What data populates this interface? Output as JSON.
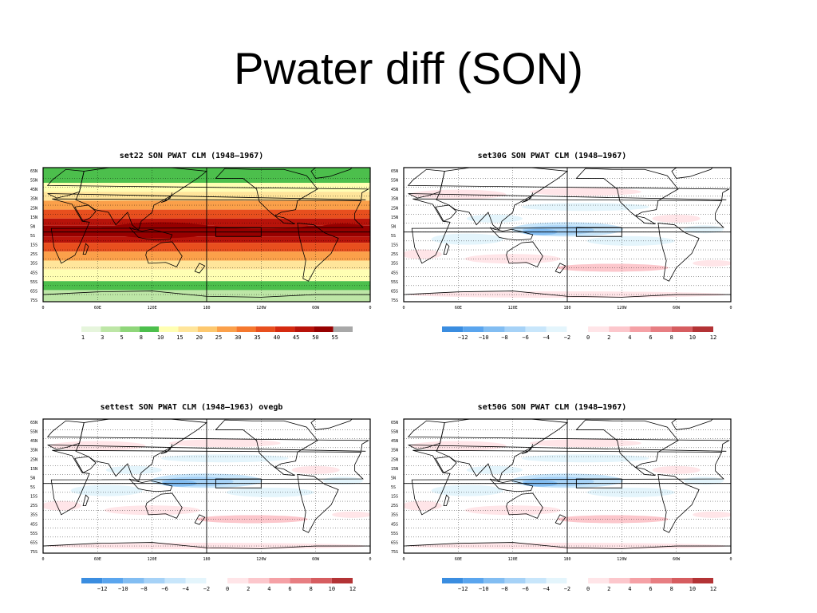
{
  "slide": {
    "title": "Pwater diff (SON)"
  },
  "lat_labels": [
    "65N",
    "55N",
    "45N",
    "35N",
    "25N",
    "15N",
    "5N",
    "5S",
    "15S",
    "25S",
    "35S",
    "45S",
    "55S",
    "65S",
    "75S"
  ],
  "lon_labels": [
    "0",
    "60E",
    "120E",
    "180",
    "120W",
    "60W",
    "0"
  ],
  "panels": [
    {
      "id": "p1",
      "title": "set22 SON PWAT CLM (1948–1967)",
      "type": "absolute",
      "colorbar": {
        "labels": [
          "1",
          "3",
          "5",
          "8",
          "10",
          "15",
          "20",
          "25",
          "30",
          "35",
          "40",
          "45",
          "50",
          "55"
        ],
        "colors": [
          "#e6f5dc",
          "#bde6a6",
          "#8fd67a",
          "#4cbf4c",
          "#ffffb3",
          "#ffe59a",
          "#fdc86e",
          "#fba04a",
          "#f5782e",
          "#e84f1e",
          "#d52a10",
          "#b8130a",
          "#960000",
          "#a8a8a8"
        ]
      }
    },
    {
      "id": "p2",
      "title": "set30G SON PWAT CLM (1948–1967)",
      "type": "diff",
      "colorbar": {
        "labels": [
          "−12",
          "−10",
          "−8",
          "−6",
          "−4",
          "−2",
          "0",
          "2",
          "4",
          "6",
          "8",
          "10",
          "12"
        ],
        "colors": [
          "#3a8de0",
          "#5aa5ee",
          "#82bdf2",
          "#a6d2f7",
          "#c8e6fb",
          "#e4f5fc",
          "#ffffff",
          "#ffe5e8",
          "#fcc7cc",
          "#f5a1a6",
          "#e77e82",
          "#d65d60",
          "#b33335"
        ]
      }
    },
    {
      "id": "p3",
      "title": "settest SON PWAT CLM (1948–1963) ovegb",
      "type": "diff",
      "colorbar": {
        "labels": [
          "−12",
          "−10",
          "−8",
          "−6",
          "−4",
          "−2",
          "0",
          "2",
          "4",
          "6",
          "8",
          "10",
          "12"
        ],
        "colors": [
          "#3a8de0",
          "#5aa5ee",
          "#82bdf2",
          "#a6d2f7",
          "#c8e6fb",
          "#e4f5fc",
          "#ffffff",
          "#ffe5e8",
          "#fcc7cc",
          "#f5a1a6",
          "#e77e82",
          "#d65d60",
          "#b33335"
        ]
      }
    },
    {
      "id": "p4",
      "title": "set50G SON PWAT CLM (1948–1967)",
      "type": "diff",
      "colorbar": {
        "labels": [
          "−12",
          "−10",
          "−8",
          "−6",
          "−4",
          "−2",
          "0",
          "2",
          "4",
          "6",
          "8",
          "10",
          "12"
        ],
        "colors": [
          "#3a8de0",
          "#5aa5ee",
          "#82bdf2",
          "#a6d2f7",
          "#c8e6fb",
          "#e4f5fc",
          "#ffffff",
          "#ffe5e8",
          "#fcc7cc",
          "#f5a1a6",
          "#e77e82",
          "#d65d60",
          "#b33335"
        ]
      }
    }
  ]
}
